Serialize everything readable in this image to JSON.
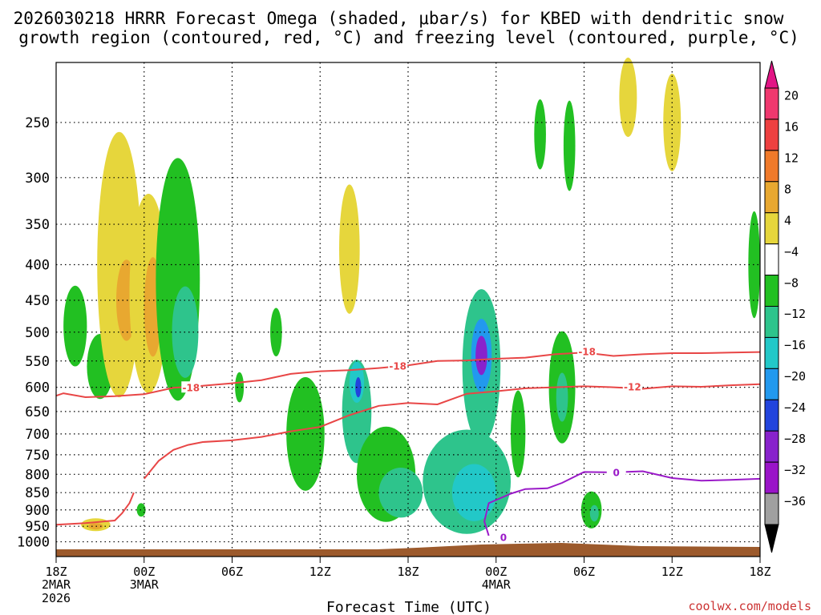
{
  "chart_data": {
    "type": "contour",
    "title_line1": "2026030218 HRRR Forecast Omega (shaded, μbar/s) for KBED with dendritic snow",
    "title_line2": "growth region (contoured, red, °C) and freezing level (contoured, purple, °C)",
    "xlabel": "Forecast Time (UTC)",
    "credit": "coolwx.com/models",
    "x_range_hours": [
      0,
      48
    ],
    "x_ticks": [
      {
        "h": 0,
        "label": "18Z",
        "date": "2MAR",
        "year": "2026"
      },
      {
        "h": 6,
        "label": "00Z",
        "date": "3MAR",
        "year": ""
      },
      {
        "h": 12,
        "label": "06Z",
        "date": "",
        "year": ""
      },
      {
        "h": 18,
        "label": "12Z",
        "date": "",
        "year": ""
      },
      {
        "h": 24,
        "label": "18Z",
        "date": "",
        "year": ""
      },
      {
        "h": 30,
        "label": "00Z",
        "date": "4MAR",
        "year": ""
      },
      {
        "h": 36,
        "label": "06Z",
        "date": "",
        "year": ""
      },
      {
        "h": 42,
        "label": "12Z",
        "date": "",
        "year": ""
      },
      {
        "h": 48,
        "label": "18Z",
        "date": "",
        "year": ""
      }
    ],
    "y_ticks_hpa": [
      250,
      300,
      350,
      400,
      450,
      500,
      550,
      600,
      650,
      700,
      750,
      800,
      850,
      900,
      950,
      1000
    ],
    "colorbar": {
      "labels": [
        "20",
        "16",
        "12",
        "8",
        "4",
        "−4",
        "−8",
        "−12",
        "−16",
        "−20",
        "−24",
        "−28",
        "−32",
        "−36"
      ],
      "colors": [
        "#f0386e",
        "#ee4040",
        "#f07a2a",
        "#e8a830",
        "#e6d63c",
        "#ffffff",
        "#22c022",
        "#2ec48c",
        "#22c8c8",
        "#2299ee",
        "#2244dd",
        "#8822cc",
        "#9a14c8",
        "#a0a0a0"
      ],
      "top_color": "#e21585",
      "bottom_color": "#000000"
    },
    "series": [
      {
        "name": "-18 C isotherm",
        "color": "#e84646",
        "label": "-18",
        "x": [
          0,
          0.5,
          2,
          4,
          6,
          8,
          10,
          12,
          14,
          16,
          18,
          20,
          22,
          24,
          26,
          28,
          30,
          32,
          34,
          36,
          38,
          40,
          42,
          44,
          46,
          48
        ],
        "p": [
          617,
          612,
          620,
          618,
          614,
          601,
          597,
          592,
          586,
          574,
          569,
          567,
          563,
          558,
          550,
          549,
          546,
          544,
          538,
          535,
          541,
          538,
          536,
          536,
          535,
          534
        ]
      },
      {
        "name": "-12 C isotherm",
        "color": "#e84646",
        "label": "-12",
        "x": [
          6,
          7,
          8,
          9,
          10,
          12,
          14,
          16,
          18,
          20,
          22,
          24,
          26,
          28,
          30,
          32,
          34,
          36,
          38,
          40,
          42,
          44,
          46,
          48
        ],
        "p": [
          812,
          765,
          738,
          726,
          719,
          715,
          707,
          694,
          684,
          658,
          638,
          632,
          635,
          613,
          608,
          602,
          600,
          598,
          600,
          603,
          598,
          599,
          596,
          594
        ]
      },
      {
        "name": "-12 C isotherm (low)",
        "color": "#e84646",
        "label": "",
        "x": [
          0,
          2,
          4,
          4.5,
          5,
          5.3
        ],
        "p": [
          945,
          940,
          932,
          910,
          880,
          850
        ]
      },
      {
        "name": "0 C freezing level",
        "color": "#9a1ac8",
        "label": "0",
        "x": [
          29.5,
          29.2,
          29.5,
          31,
          32,
          33.5,
          34.5,
          36,
          38,
          40,
          42,
          44,
          46,
          48
        ],
        "p": [
          980,
          935,
          880,
          853,
          840,
          838,
          823,
          794,
          795,
          792,
          810,
          817,
          815,
          812
        ]
      }
    ],
    "omega_cells": [
      {
        "x": 1.3,
        "p": 490,
        "w": 0.8,
        "h": 130,
        "value": -6
      },
      {
        "x": 3.0,
        "p": 560,
        "w": 0.9,
        "h": 120,
        "value": -6
      },
      {
        "x": 4.3,
        "p": 400,
        "w": 1.5,
        "h": 330,
        "value": 6
      },
      {
        "x": 4.8,
        "p": 450,
        "w": 0.7,
        "h": 120,
        "value": 10
      },
      {
        "x": 6.3,
        "p": 440,
        "w": 1.3,
        "h": 280,
        "value": 6
      },
      {
        "x": 6.6,
        "p": 460,
        "w": 0.6,
        "h": 150,
        "value": 10
      },
      {
        "x": 8.3,
        "p": 420,
        "w": 1.5,
        "h": 320,
        "value": -7
      },
      {
        "x": 8.8,
        "p": 500,
        "w": 0.9,
        "h": 150,
        "value": -10
      },
      {
        "x": 5.8,
        "p": 900,
        "w": 0.3,
        "h": 40,
        "value": -6
      },
      {
        "x": 2.7,
        "p": 945,
        "w": 1.0,
        "h": 40,
        "value": 6
      },
      {
        "x": 2.7,
        "p": 950,
        "w": 0.5,
        "h": 20,
        "value": 10
      },
      {
        "x": 12.5,
        "p": 600,
        "w": 0.3,
        "h": 60,
        "value": -6
      },
      {
        "x": 15.0,
        "p": 500,
        "w": 0.4,
        "h": 80,
        "value": -6
      },
      {
        "x": 17.0,
        "p": 700,
        "w": 1.3,
        "h": 260,
        "value": -6
      },
      {
        "x": 20.5,
        "p": 650,
        "w": 1.0,
        "h": 220,
        "value": -8
      },
      {
        "x": 20.5,
        "p": 590,
        "w": 0.5,
        "h": 80,
        "value": -14
      },
      {
        "x": 20.6,
        "p": 600,
        "w": 0.2,
        "h": 40,
        "value": -20
      },
      {
        "x": 20.0,
        "p": 380,
        "w": 0.7,
        "h": 160,
        "value": 6
      },
      {
        "x": 22.5,
        "p": 800,
        "w": 2.0,
        "h": 250,
        "value": -7
      },
      {
        "x": 23.5,
        "p": 850,
        "w": 1.5,
        "h": 140,
        "value": -11
      },
      {
        "x": 29.0,
        "p": 560,
        "w": 1.3,
        "h": 280,
        "value": -11
      },
      {
        "x": 29.0,
        "p": 540,
        "w": 0.7,
        "h": 130,
        "value": -17
      },
      {
        "x": 29.0,
        "p": 540,
        "w": 0.4,
        "h": 70,
        "value": -25
      },
      {
        "x": 28.0,
        "p": 820,
        "w": 3.0,
        "h": 280,
        "value": -8
      },
      {
        "x": 28.5,
        "p": 850,
        "w": 1.5,
        "h": 160,
        "value": -14
      },
      {
        "x": 31.5,
        "p": 700,
        "w": 0.5,
        "h": 200,
        "value": -6
      },
      {
        "x": 33.0,
        "p": 260,
        "w": 0.4,
        "h": 60,
        "value": -6
      },
      {
        "x": 34.5,
        "p": 600,
        "w": 0.9,
        "h": 220,
        "value": -7
      },
      {
        "x": 34.5,
        "p": 620,
        "w": 0.4,
        "h": 100,
        "value": -11
      },
      {
        "x": 35.0,
        "p": 270,
        "w": 0.4,
        "h": 80,
        "value": -6
      },
      {
        "x": 36.5,
        "p": 900,
        "w": 0.7,
        "h": 110,
        "value": -7
      },
      {
        "x": 36.7,
        "p": 910,
        "w": 0.3,
        "h": 50,
        "value": -11
      },
      {
        "x": 39.0,
        "p": 230,
        "w": 0.6,
        "h": 60,
        "value": 6
      },
      {
        "x": 42.0,
        "p": 250,
        "w": 0.6,
        "h": 80,
        "value": 6
      },
      {
        "x": 47.6,
        "p": 400,
        "w": 0.4,
        "h": 140,
        "value": -6
      }
    ]
  }
}
